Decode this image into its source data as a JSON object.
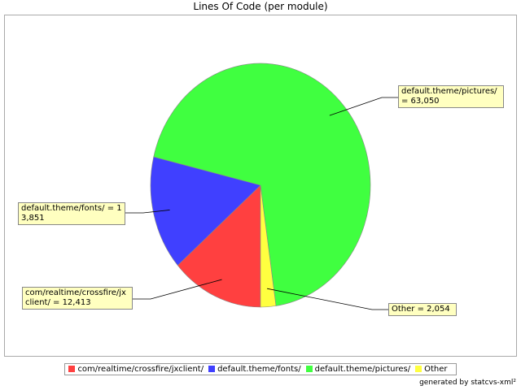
{
  "chart_data": {
    "type": "pie",
    "title": "Lines Of Code (per module)",
    "categories": [
      "com/realtime/crossfire/jxclient/",
      "default.theme/fonts/",
      "default.theme/pictures/",
      "Other"
    ],
    "values": [
      12413,
      13851,
      63050,
      2054
    ],
    "value_labels": [
      "com/realtime/crossfire/jxclient/ = 12,413",
      "default.theme/fonts/ = 13,851",
      "default.theme/pictures/ = 63,050",
      "Other = 2,054"
    ],
    "colors": [
      "#ff4040",
      "#4040ff",
      "#40ff40",
      "#ffff40"
    ],
    "footer": "generated by statcvs-xml²"
  }
}
